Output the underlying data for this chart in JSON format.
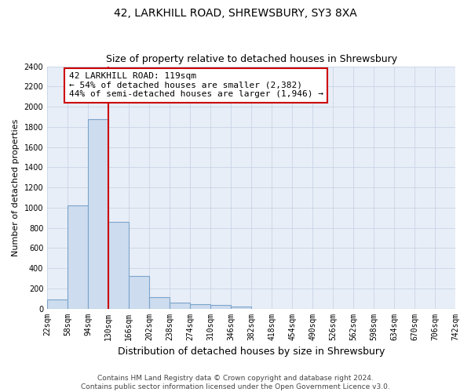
{
  "title": "42, LARKHILL ROAD, SHREWSBURY, SY3 8XA",
  "subtitle": "Size of property relative to detached houses in Shrewsbury",
  "xlabel": "Distribution of detached houses by size in Shrewsbury",
  "ylabel": "Number of detached properties",
  "footer_line1": "Contains HM Land Registry data © Crown copyright and database right 2024.",
  "footer_line2": "Contains public sector information licensed under the Open Government Licence v3.0.",
  "property_size": 119,
  "annotation_text": "42 LARKHILL ROAD: 119sqm\n← 54% of detached houses are smaller (2,382)\n44% of semi-detached houses are larger (1,946) →",
  "bar_left_edges": [
    22,
    58,
    94,
    130,
    166,
    202,
    238,
    274,
    310,
    346,
    382,
    418,
    454,
    490,
    526,
    562,
    598,
    634,
    670,
    706
  ],
  "bar_heights": [
    90,
    1020,
    1880,
    860,
    320,
    115,
    55,
    45,
    35,
    20,
    0,
    0,
    0,
    0,
    0,
    0,
    0,
    0,
    0,
    0
  ],
  "bin_width": 36,
  "bar_color": "#cddcee",
  "bar_edge_color": "#7ba4cc",
  "vline_color": "#cc0000",
  "vline_x": 130,
  "annotation_box_color": "#ffffff",
  "annotation_box_edge_color": "#cc0000",
  "ylim": [
    0,
    2400
  ],
  "xlim": [
    22,
    742
  ],
  "yticks": [
    0,
    200,
    400,
    600,
    800,
    1000,
    1200,
    1400,
    1600,
    1800,
    2000,
    2200,
    2400
  ],
  "tick_labels": [
    "22sqm",
    "58sqm",
    "94sqm",
    "130sqm",
    "166sqm",
    "202sqm",
    "238sqm",
    "274sqm",
    "310sqm",
    "346sqm",
    "382sqm",
    "418sqm",
    "454sqm",
    "490sqm",
    "526sqm",
    "562sqm",
    "598sqm",
    "634sqm",
    "670sqm",
    "706sqm",
    "742sqm"
  ],
  "title_fontsize": 10,
  "subtitle_fontsize": 9,
  "xlabel_fontsize": 9,
  "ylabel_fontsize": 8,
  "tick_fontsize": 7,
  "annotation_fontsize": 8,
  "footer_fontsize": 6.5,
  "plot_bg_color": "#e8eef7",
  "fig_bg_color": "#ffffff",
  "grid_color": "#c8d4e6"
}
